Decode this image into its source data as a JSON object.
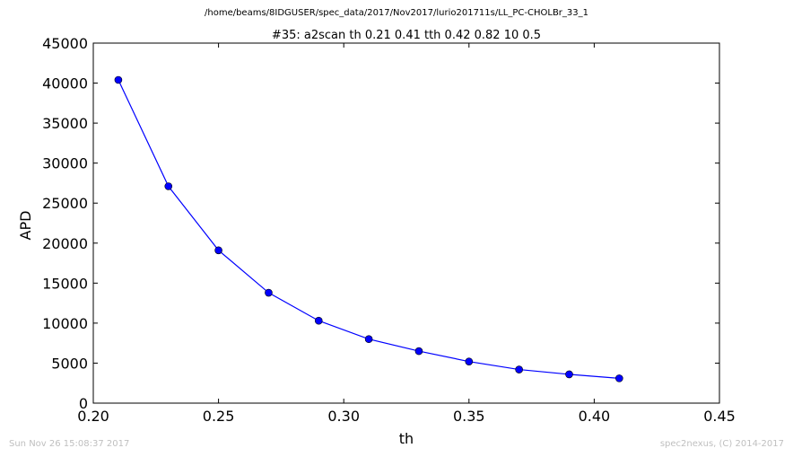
{
  "suptitle": "/home/beams/8IDGUSER/spec_data/2017/Nov2017/lurio201711s/LL_PC-CHOLBr_33_1",
  "footer": {
    "timestamp": "Sun Nov 26 15:08:37 2017",
    "credit": "spec2nexus, (C) 2014-2017"
  },
  "chart_data": {
    "type": "line",
    "title": "#35: a2scan  th 0.21 0.41  tth 0.42 0.82  10 0.5",
    "xlabel": "th",
    "ylabel": "APD",
    "xlim": [
      0.2,
      0.45
    ],
    "ylim": [
      0,
      45000
    ],
    "xticks": [
      "0.20",
      "0.25",
      "0.30",
      "0.35",
      "0.40",
      "0.45"
    ],
    "yticks": [
      "0",
      "5000",
      "10000",
      "15000",
      "20000",
      "25000",
      "30000",
      "35000",
      "40000",
      "45000"
    ],
    "grid": false,
    "series": [
      {
        "color": "#0000ff",
        "marker": "circle",
        "x": [
          0.21,
          0.23,
          0.25,
          0.27,
          0.29,
          0.31,
          0.33,
          0.35,
          0.37,
          0.39,
          0.41
        ],
        "y": [
          40400,
          27100,
          19100,
          13800,
          10300,
          8000,
          6500,
          5200,
          4200,
          3600,
          3100
        ]
      }
    ]
  }
}
